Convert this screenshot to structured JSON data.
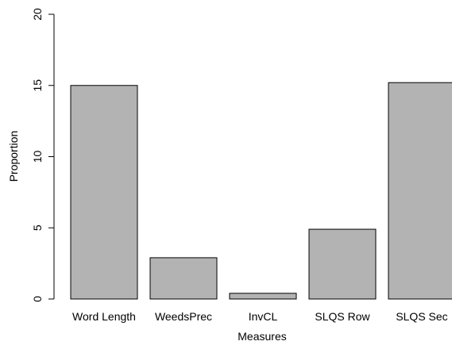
{
  "chart_data": {
    "type": "bar",
    "title": "",
    "xlabel": "Measures",
    "ylabel": "Proportion",
    "categories": [
      "Word Length",
      "WeedsPrec",
      "InvCL",
      "SLQS Row",
      "SLQS Sec"
    ],
    "values": [
      15.0,
      2.9,
      0.4,
      4.9,
      15.2
    ],
    "ylim": [
      0,
      20
    ],
    "yticks": [
      0,
      5,
      10,
      15,
      20
    ],
    "grid": false,
    "colors": {
      "bar_fill": "#b3b3b3",
      "bar_stroke": "#000000",
      "axis": "#000000"
    }
  }
}
